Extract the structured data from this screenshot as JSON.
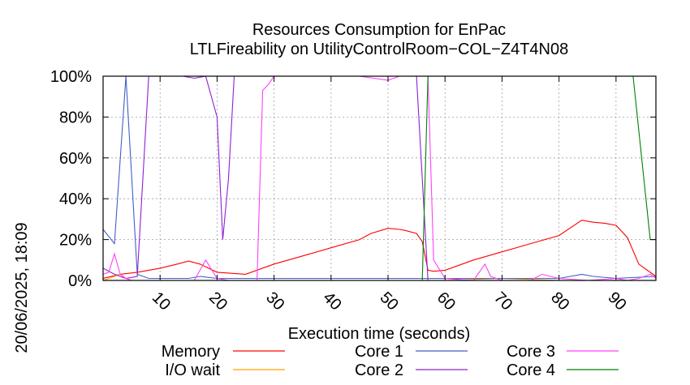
{
  "timestamp": "20/06/2025, 18:09",
  "chart_data": {
    "type": "line",
    "title": [
      "Resources Consumption for EnPac",
      "LTLFireability on UtilityControlRoom−COL−Z4T4N08"
    ],
    "xlabel": "Execution time (seconds)",
    "ylabel": "",
    "xlim": [
      0,
      97
    ],
    "ylim": [
      0,
      100
    ],
    "xticks": [
      10,
      20,
      30,
      40,
      50,
      60,
      70,
      80,
      90
    ],
    "yticks": [
      0,
      20,
      40,
      60,
      80,
      100
    ],
    "ytick_labels": [
      "0%",
      "20%",
      "40%",
      "60%",
      "80%",
      "100%"
    ],
    "grid": true,
    "legend_placement": "bottom",
    "series": [
      {
        "name": "Memory",
        "color": "#ff0000",
        "x": [
          0,
          3,
          6,
          10,
          13,
          15,
          17,
          20,
          25,
          30,
          35,
          40,
          45,
          47,
          50,
          52,
          53,
          55,
          56,
          57,
          58,
          60,
          65,
          70,
          75,
          80,
          84,
          86,
          88,
          90,
          92,
          94,
          97
        ],
        "y": [
          1,
          3,
          4,
          6,
          8,
          9.5,
          8,
          4,
          3,
          8,
          12,
          16,
          20,
          23,
          25.5,
          25,
          24.5,
          23,
          19,
          5,
          4.5,
          5,
          10,
          14,
          18,
          22,
          29.5,
          28.5,
          28,
          27,
          21,
          8,
          2
        ]
      },
      {
        "name": "I/O wait",
        "color": "#ffa500",
        "x": [
          0,
          1,
          2,
          3,
          4,
          5,
          10,
          20,
          40,
          60,
          70,
          80,
          90,
          97
        ],
        "y": [
          0,
          1,
          2,
          3,
          1,
          0,
          0,
          0,
          0,
          0,
          1,
          0,
          0,
          0
        ]
      },
      {
        "name": "Core 1",
        "color": "#4060c8",
        "x": [
          0,
          2,
          4,
          6,
          8,
          10,
          15,
          17,
          20,
          25,
          30,
          40,
          50,
          55,
          60,
          70,
          80,
          84,
          86,
          90,
          97
        ],
        "y": [
          25,
          18,
          100,
          3,
          1,
          1,
          1,
          2,
          1,
          1,
          1,
          1,
          1,
          1,
          1,
          1,
          1,
          3,
          2,
          1,
          2
        ]
      },
      {
        "name": "Core 2",
        "color": "#9020d0",
        "x": [
          0,
          2,
          4,
          6,
          8,
          10,
          14,
          16,
          18,
          20,
          21,
          22,
          23,
          24,
          27,
          28,
          30,
          40,
          50,
          55,
          57
        ],
        "y": [
          6,
          3,
          1,
          2,
          100,
          100,
          100,
          99,
          100,
          80,
          20,
          50,
          100,
          100,
          100,
          100,
          100,
          100,
          100,
          100,
          0
        ]
      },
      {
        "name": "Core 3",
        "color": "#ff40ff",
        "x": [
          0,
          1,
          2,
          3,
          4,
          5,
          6,
          10,
          13,
          16,
          18,
          20,
          22,
          25,
          27,
          28,
          29,
          30,
          35,
          40,
          45,
          50,
          51,
          52,
          55,
          56,
          57,
          58,
          60,
          65,
          67,
          68,
          70,
          75,
          77,
          80,
          85,
          90,
          92,
          94,
          96,
          97
        ],
        "y": [
          3,
          4,
          13,
          3,
          1,
          0,
          0,
          0,
          0,
          0,
          10,
          1,
          0,
          0,
          0,
          93,
          96,
          100,
          100,
          100,
          100,
          98,
          99,
          100,
          100,
          100,
          100,
          10,
          1,
          0,
          8,
          2,
          0,
          0,
          3,
          1,
          0,
          1,
          0,
          1,
          3,
          1
        ]
      },
      {
        "name": "Core 4",
        "color": "#008000",
        "x": [
          0,
          30,
          50,
          55,
          56,
          57,
          60,
          70,
          80,
          90,
          93,
          96,
          97
        ],
        "y": [
          0,
          0,
          0,
          0,
          0,
          100,
          100,
          100,
          100,
          100,
          100,
          20,
          20
        ]
      }
    ]
  }
}
